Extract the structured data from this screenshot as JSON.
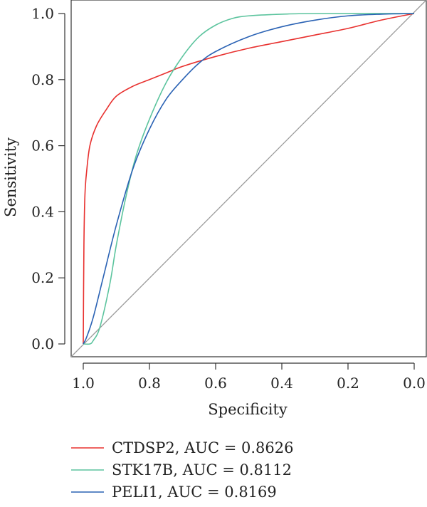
{
  "chart_data": {
    "type": "line",
    "title": "",
    "xlabel": "Specificity",
    "ylabel": "Sensitivity",
    "xlim": [
      1.0,
      0.0
    ],
    "ylim": [
      0.0,
      1.0
    ],
    "x_reversed": true,
    "xticks": [
      "1.0",
      "0.8",
      "0.6",
      "0.4",
      "0.2",
      "0.0"
    ],
    "yticks": [
      "0.0",
      "0.2",
      "0.4",
      "0.6",
      "0.8",
      "1.0"
    ],
    "grid": false,
    "legend_position": "bottom",
    "diagonal": {
      "color": "#9a9a9a",
      "points": [
        [
          1.0,
          0.0
        ],
        [
          0.0,
          1.0
        ]
      ]
    },
    "series": [
      {
        "name": "CTDSP2, AUC = 0.8626",
        "color": "#e8312f",
        "points": [
          [
            1.0,
            0.0
          ],
          [
            0.998,
            0.3
          ],
          [
            0.995,
            0.45
          ],
          [
            0.99,
            0.52
          ],
          [
            0.98,
            0.6
          ],
          [
            0.96,
            0.66
          ],
          [
            0.93,
            0.71
          ],
          [
            0.9,
            0.75
          ],
          [
            0.85,
            0.78
          ],
          [
            0.8,
            0.8
          ],
          [
            0.75,
            0.82
          ],
          [
            0.7,
            0.84
          ],
          [
            0.6,
            0.87
          ],
          [
            0.5,
            0.895
          ],
          [
            0.4,
            0.915
          ],
          [
            0.3,
            0.935
          ],
          [
            0.2,
            0.955
          ],
          [
            0.1,
            0.98
          ],
          [
            0.0,
            1.0
          ]
        ]
      },
      {
        "name": "STK17B, AUC = 0.8112",
        "color": "#5cc49e",
        "points": [
          [
            1.0,
            0.0
          ],
          [
            0.98,
            0.0
          ],
          [
            0.97,
            0.01
          ],
          [
            0.95,
            0.05
          ],
          [
            0.92,
            0.18
          ],
          [
            0.9,
            0.3
          ],
          [
            0.87,
            0.45
          ],
          [
            0.84,
            0.57
          ],
          [
            0.8,
            0.68
          ],
          [
            0.75,
            0.79
          ],
          [
            0.7,
            0.87
          ],
          [
            0.65,
            0.93
          ],
          [
            0.6,
            0.965
          ],
          [
            0.55,
            0.985
          ],
          [
            0.5,
            0.993
          ],
          [
            0.4,
            0.998
          ],
          [
            0.3,
            1.0
          ],
          [
            0.0,
            1.0
          ]
        ]
      },
      {
        "name": "PELI1, AUC = 0.8169",
        "color": "#2a62b4",
        "points": [
          [
            1.0,
            0.0
          ],
          [
            0.99,
            0.02
          ],
          [
            0.97,
            0.08
          ],
          [
            0.94,
            0.2
          ],
          [
            0.9,
            0.36
          ],
          [
            0.85,
            0.53
          ],
          [
            0.8,
            0.65
          ],
          [
            0.75,
            0.74
          ],
          [
            0.7,
            0.8
          ],
          [
            0.65,
            0.85
          ],
          [
            0.6,
            0.885
          ],
          [
            0.5,
            0.93
          ],
          [
            0.4,
            0.96
          ],
          [
            0.3,
            0.98
          ],
          [
            0.2,
            0.993
          ],
          [
            0.1,
            0.998
          ],
          [
            0.0,
            1.0
          ]
        ]
      }
    ]
  }
}
